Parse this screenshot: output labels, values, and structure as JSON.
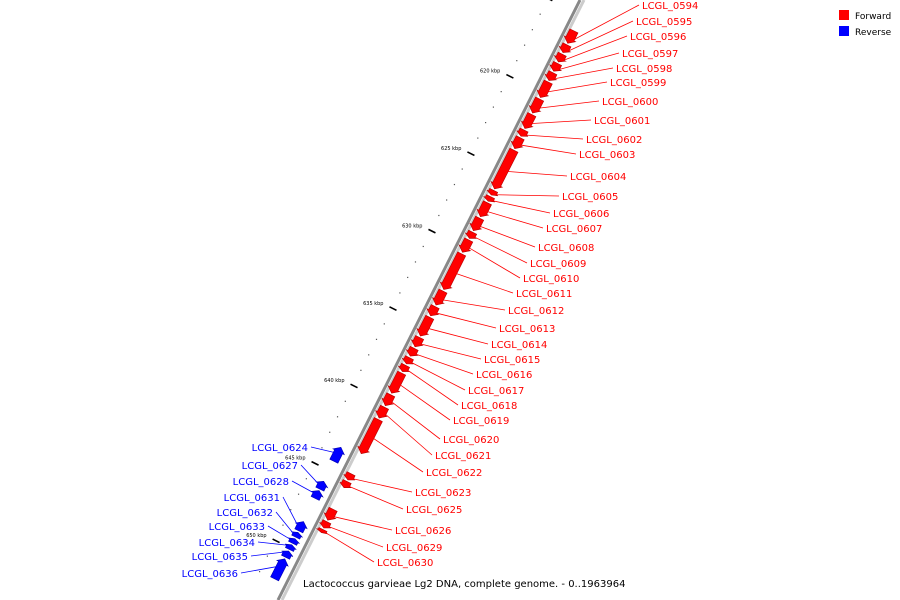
{
  "caption": "Lactococcus garvieae Lg2 DNA, complete genome. - 0..1963964",
  "colors": {
    "forward": "#ff0000",
    "reverse": "#0000ff",
    "backbone": "#888888",
    "leader_fwd": "#ff0000",
    "leader_rev": "#0000ff"
  },
  "legend": [
    {
      "label": "Forward",
      "color": "#ff0000"
    },
    {
      "label": "Reverse",
      "color": "#0000ff"
    }
  ],
  "ticks": [
    {
      "kbp": 620,
      "label": "620 kbp"
    },
    {
      "kbp": 625,
      "label": "625 kbp"
    },
    {
      "kbp": 630,
      "label": "630 kbp"
    },
    {
      "kbp": 635,
      "label": "635 kbp"
    },
    {
      "kbp": 640,
      "label": "640 kbp"
    },
    {
      "kbp": 645,
      "label": "645 kbp"
    },
    {
      "kbp": 650,
      "label": "650 kbp"
    }
  ],
  "forward_genes": [
    {
      "name": "LCGL_0594",
      "start_kbp": 616.0,
      "end_kbp": 616.8
    },
    {
      "name": "LCGL_0595",
      "start_kbp": 616.9,
      "end_kbp": 617.4
    },
    {
      "name": "LCGL_0596",
      "start_kbp": 617.5,
      "end_kbp": 618.0
    },
    {
      "name": "LCGL_0597",
      "start_kbp": 618.1,
      "end_kbp": 618.6
    },
    {
      "name": "LCGL_0598",
      "start_kbp": 618.7,
      "end_kbp": 619.2
    },
    {
      "name": "LCGL_0599",
      "start_kbp": 619.3,
      "end_kbp": 620.3
    },
    {
      "name": "LCGL_0600",
      "start_kbp": 620.4,
      "end_kbp": 621.3
    },
    {
      "name": "LCGL_0601",
      "start_kbp": 621.4,
      "end_kbp": 622.3
    },
    {
      "name": "LCGL_0602",
      "start_kbp": 622.4,
      "end_kbp": 622.8
    },
    {
      "name": "LCGL_0603",
      "start_kbp": 622.9,
      "end_kbp": 623.6
    },
    {
      "name": "LCGL_0604",
      "start_kbp": 623.7,
      "end_kbp": 626.2
    },
    {
      "name": "LCGL_0605",
      "start_kbp": 626.3,
      "end_kbp": 626.6
    },
    {
      "name": "LCGL_0606",
      "start_kbp": 626.7,
      "end_kbp": 627.0
    },
    {
      "name": "LCGL_0607",
      "start_kbp": 627.1,
      "end_kbp": 628.0
    },
    {
      "name": "LCGL_0608",
      "start_kbp": 628.1,
      "end_kbp": 628.9
    },
    {
      "name": "LCGL_0609",
      "start_kbp": 629.0,
      "end_kbp": 629.4
    },
    {
      "name": "LCGL_0610",
      "start_kbp": 629.5,
      "end_kbp": 630.3
    },
    {
      "name": "LCGL_0611",
      "start_kbp": 630.4,
      "end_kbp": 632.7
    },
    {
      "name": "LCGL_0612",
      "start_kbp": 632.8,
      "end_kbp": 633.7
    },
    {
      "name": "LCGL_0613",
      "start_kbp": 633.8,
      "end_kbp": 634.4
    },
    {
      "name": "LCGL_0614",
      "start_kbp": 634.5,
      "end_kbp": 635.7
    },
    {
      "name": "LCGL_0615",
      "start_kbp": 635.8,
      "end_kbp": 636.4
    },
    {
      "name": "LCGL_0616",
      "start_kbp": 636.5,
      "end_kbp": 637.0
    },
    {
      "name": "LCGL_0617",
      "start_kbp": 637.1,
      "end_kbp": 637.5
    },
    {
      "name": "LCGL_0618",
      "start_kbp": 637.6,
      "end_kbp": 638.0
    },
    {
      "name": "LCGL_0619",
      "start_kbp": 638.1,
      "end_kbp": 639.4
    },
    {
      "name": "LCGL_0620",
      "start_kbp": 639.5,
      "end_kbp": 640.2
    },
    {
      "name": "LCGL_0621",
      "start_kbp": 640.3,
      "end_kbp": 641.0
    },
    {
      "name": "LCGL_0622",
      "start_kbp": 641.1,
      "end_kbp": 643.3
    },
    {
      "name": "LCGL_0623",
      "start_kbp": 644.6,
      "end_kbp": 645.0
    },
    {
      "name": "LCGL_0625",
      "start_kbp": 645.1,
      "end_kbp": 645.5
    },
    {
      "name": "LCGL_0626",
      "start_kbp": 646.9,
      "end_kbp": 647.6
    },
    {
      "name": "LCGL_0629",
      "start_kbp": 647.7,
      "end_kbp": 648.1
    },
    {
      "name": "LCGL_0630",
      "start_kbp": 648.2,
      "end_kbp": 648.4
    }
  ],
  "reverse_genes": [
    {
      "name": "LCGL_0624",
      "start_kbp": 643.5,
      "end_kbp": 644.4
    },
    {
      "name": "LCGL_0627",
      "start_kbp": 645.7,
      "end_kbp": 646.2
    },
    {
      "name": "LCGL_0628",
      "start_kbp": 646.3,
      "end_kbp": 646.8
    },
    {
      "name": "LCGL_0631",
      "start_kbp": 648.3,
      "end_kbp": 648.9
    },
    {
      "name": "LCGL_0632",
      "start_kbp": 649.0,
      "end_kbp": 649.3
    },
    {
      "name": "LCGL_0633",
      "start_kbp": 649.4,
      "end_kbp": 649.7
    },
    {
      "name": "LCGL_0634",
      "start_kbp": 649.8,
      "end_kbp": 650.1
    },
    {
      "name": "LCGL_0635",
      "start_kbp": 650.2,
      "end_kbp": 650.6
    },
    {
      "name": "LCGL_0636",
      "start_kbp": 650.7,
      "end_kbp": 652.0
    }
  ]
}
